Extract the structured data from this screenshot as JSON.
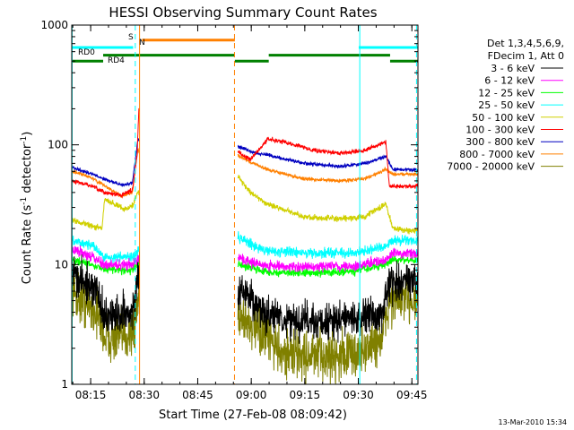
{
  "chart_data": {
    "type": "line",
    "title": "HESSI Observing Summary Count Rates",
    "xlabel": "Start Time (27-Feb-08 08:09:42)",
    "ylabel_main": "Count Rate (s",
    "ylabel_sup1": "-1",
    "ylabel_mid": " detector",
    "ylabel_sup2": "-1",
    "ylabel_end": ")",
    "yscale": "log",
    "ylim": [
      1,
      1000
    ],
    "xlim_minutes": [
      0,
      97
    ],
    "x_ticks": [
      {
        "label": "08:15",
        "m": 5.3
      },
      {
        "label": "08:30",
        "m": 20.3
      },
      {
        "label": "08:45",
        "m": 35.3
      },
      {
        "label": "09:00",
        "m": 50.3
      },
      {
        "label": "09:15",
        "m": 65.3
      },
      {
        "label": "09:30",
        "m": 80.3
      },
      {
        "label": "09:45",
        "m": 95.3
      }
    ],
    "y_ticks": [
      {
        "label": "1",
        "v": 1
      },
      {
        "label": "10",
        "v": 10
      },
      {
        "label": "100",
        "v": 100
      },
      {
        "label": "1000",
        "v": 1000
      }
    ],
    "legend_header": [
      "Det 1,3,4,5,6,9,",
      "FDecim 1, Att 0"
    ],
    "legend_position": "right",
    "timestamp": "13-Mar-2010 15:34",
    "flag_labels": {
      "saa": "S",
      "night": "N",
      "rd0": "RD0",
      "rd4": "RD4"
    },
    "flags": {
      "saa": {
        "color": "#ff8000",
        "v": 750,
        "intervals": [
          [
            19.7,
            45.7
          ]
        ]
      },
      "night": {
        "color": "#00ffff",
        "v": 650,
        "intervals": [
          [
            0,
            17.2
          ],
          [
            80.4,
            97
          ]
        ]
      },
      "rd0": {
        "color": "#008000",
        "v": 560,
        "intervals": [
          [
            8.8,
            45.7
          ],
          [
            55.2,
            89.2
          ]
        ]
      },
      "rd4": {
        "color": "#008000",
        "v": 500,
        "intervals": [
          [
            0,
            8.8
          ],
          [
            45.7,
            55.2
          ],
          [
            89.2,
            97
          ]
        ]
      }
    },
    "vlines": [
      {
        "m": 0.1,
        "color": "#00ffff",
        "style": "solid"
      },
      {
        "m": 17.8,
        "color": "#00ffff",
        "style": "dashed"
      },
      {
        "m": 19.0,
        "color": "#ff8000",
        "style": "solid"
      },
      {
        "m": 45.6,
        "color": "#ff8000",
        "style": "dashed"
      },
      {
        "m": 80.7,
        "color": "#00ffff",
        "style": "solid"
      },
      {
        "m": 96.6,
        "color": "#00ffff",
        "style": "dashed"
      }
    ],
    "gaps": [
      [
        19.0,
        46.5
      ]
    ],
    "series": [
      {
        "name": "3 - 6 keV",
        "color": "#000000",
        "noise": 0.45,
        "points": [
          [
            0,
            8.5
          ],
          [
            3,
            7.5
          ],
          [
            7,
            6
          ],
          [
            9,
            3.8
          ],
          [
            13,
            3.8
          ],
          [
            17.5,
            4
          ],
          [
            18.5,
            8
          ],
          [
            46.5,
            6
          ],
          [
            50,
            5
          ],
          [
            55,
            3.8
          ],
          [
            60,
            3.4
          ],
          [
            70,
            3.4
          ],
          [
            80,
            3.5
          ],
          [
            87,
            4
          ],
          [
            89,
            7
          ],
          [
            97,
            7.5
          ]
        ]
      },
      {
        "name": "6 - 12 keV",
        "color": "#ff00ff",
        "noise": 0.12,
        "points": [
          [
            0,
            13.5
          ],
          [
            5,
            12
          ],
          [
            9,
            10
          ],
          [
            17,
            10
          ],
          [
            18.5,
            11
          ],
          [
            46.5,
            11.5
          ],
          [
            50,
            10.5
          ],
          [
            55,
            9.8
          ],
          [
            65,
            9.5
          ],
          [
            80,
            9.8
          ],
          [
            88,
            11
          ],
          [
            90,
            12.5
          ],
          [
            97,
            12.5
          ]
        ]
      },
      {
        "name": "12 - 25 keV",
        "color": "#00ff00",
        "noise": 0.1,
        "points": [
          [
            0,
            11
          ],
          [
            5,
            10
          ],
          [
            9,
            9.2
          ],
          [
            17,
            9
          ],
          [
            18.5,
            10
          ],
          [
            46.5,
            10.2
          ],
          [
            50,
            9.5
          ],
          [
            55,
            8.6
          ],
          [
            65,
            8.5
          ],
          [
            80,
            8.8
          ],
          [
            88,
            10
          ],
          [
            90,
            11
          ],
          [
            97,
            11
          ]
        ]
      },
      {
        "name": "25 - 50 keV",
        "color": "#00ffff",
        "noise": 0.12,
        "points": [
          [
            0,
            16
          ],
          [
            6,
            14.5
          ],
          [
            9,
            11.5
          ],
          [
            17,
            11.5
          ],
          [
            18.5,
            13
          ],
          [
            46.5,
            17
          ],
          [
            50,
            15
          ],
          [
            55,
            13
          ],
          [
            65,
            12.5
          ],
          [
            80,
            12.5
          ],
          [
            88,
            14
          ],
          [
            90,
            16
          ],
          [
            97,
            16
          ]
        ]
      },
      {
        "name": "50 - 100 keV",
        "color": "#d0d000",
        "noise": 0.07,
        "points": [
          [
            0,
            24
          ],
          [
            3,
            22
          ],
          [
            8.5,
            20
          ],
          [
            9.2,
            35
          ],
          [
            15,
            29
          ],
          [
            17,
            31
          ],
          [
            18.5,
            40
          ],
          [
            46.5,
            55
          ],
          [
            50,
            40
          ],
          [
            55,
            32
          ],
          [
            65,
            25
          ],
          [
            75,
            24
          ],
          [
            82,
            25
          ],
          [
            88,
            32
          ],
          [
            90,
            20
          ],
          [
            97,
            19
          ]
        ]
      },
      {
        "name": "100 - 300 keV",
        "color": "#ff0000",
        "noise": 0.05,
        "points": [
          [
            0,
            50
          ],
          [
            5,
            46
          ],
          [
            9,
            40
          ],
          [
            14,
            38
          ],
          [
            17,
            42
          ],
          [
            18.3,
            80
          ],
          [
            18.8,
            200
          ],
          [
            46.5,
            88
          ],
          [
            50,
            75
          ],
          [
            55,
            112
          ],
          [
            60,
            105
          ],
          [
            68,
            90
          ],
          [
            75,
            85
          ],
          [
            82,
            90
          ],
          [
            88,
            105
          ],
          [
            89,
            45
          ],
          [
            97,
            45
          ]
        ]
      },
      {
        "name": "300 - 800 keV",
        "color": "#0000c0",
        "noise": 0.04,
        "points": [
          [
            0,
            65
          ],
          [
            5,
            58
          ],
          [
            9,
            52
          ],
          [
            14,
            46
          ],
          [
            17,
            48
          ],
          [
            18.5,
            110
          ],
          [
            46.5,
            98
          ],
          [
            50,
            88
          ],
          [
            55,
            82
          ],
          [
            65,
            70
          ],
          [
            75,
            66
          ],
          [
            82,
            70
          ],
          [
            88,
            80
          ],
          [
            90,
            62
          ],
          [
            97,
            62
          ]
        ]
      },
      {
        "name": "800 - 7000 keV",
        "color": "#ff8000",
        "noise": 0.04,
        "points": [
          [
            0,
            60
          ],
          [
            5,
            54
          ],
          [
            9,
            46
          ],
          [
            14,
            37
          ],
          [
            17,
            40
          ],
          [
            18.5,
            90
          ],
          [
            46.5,
            82
          ],
          [
            50,
            72
          ],
          [
            55,
            62
          ],
          [
            65,
            52
          ],
          [
            75,
            50
          ],
          [
            82,
            52
          ],
          [
            88,
            62
          ],
          [
            90,
            57
          ],
          [
            97,
            57
          ]
        ]
      },
      {
        "name": "7000 - 20000 keV",
        "color": "#808000",
        "noise": 0.6,
        "points": [
          [
            0,
            6
          ],
          [
            3,
            5
          ],
          [
            7,
            4
          ],
          [
            9,
            2.6
          ],
          [
            13,
            2.4
          ],
          [
            17.5,
            2.8
          ],
          [
            18.5,
            5
          ],
          [
            46.5,
            4
          ],
          [
            50,
            3.2
          ],
          [
            55,
            2.4
          ],
          [
            60,
            1.8
          ],
          [
            70,
            1.7
          ],
          [
            80,
            1.8
          ],
          [
            87,
            2.4
          ],
          [
            89,
            5
          ],
          [
            97,
            5.2
          ]
        ]
      }
    ]
  }
}
